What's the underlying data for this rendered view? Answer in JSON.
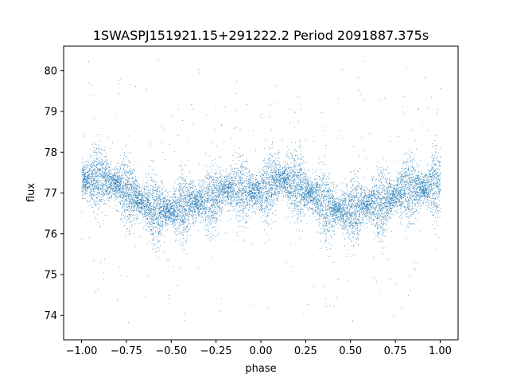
{
  "chart_data": {
    "type": "scatter",
    "title": "1SWASPJ151921.15+291222.2 Period 2091887.375s",
    "xlabel": "phase",
    "ylabel": "flux",
    "xlim": [
      -1.1,
      1.1
    ],
    "ylim": [
      73.4,
      80.6
    ],
    "xticks": [
      -1.0,
      -0.75,
      -0.5,
      -0.25,
      0.0,
      0.25,
      0.5,
      0.75,
      1.0
    ],
    "xtick_labels": [
      "−1.00",
      "−0.75",
      "−0.50",
      "−0.25",
      "0.00",
      "0.25",
      "0.50",
      "0.75",
      "1.00"
    ],
    "yticks": [
      74,
      75,
      76,
      77,
      78,
      79,
      80
    ],
    "ytick_labels": [
      "74",
      "75",
      "76",
      "77",
      "78",
      "79",
      "80"
    ],
    "grid": false,
    "point_color": "#1f77b4",
    "series": [
      {
        "profile_phase": [
          -1.0,
          -0.9,
          -0.8,
          -0.7,
          -0.6,
          -0.5,
          -0.4,
          -0.3,
          -0.2,
          -0.1,
          0.0,
          0.1,
          0.2,
          0.3,
          0.4,
          0.5,
          0.6,
          0.7,
          0.8,
          0.9,
          1.0
        ],
        "profile_flux": [
          77.3,
          77.4,
          77.2,
          76.9,
          76.6,
          76.55,
          76.75,
          76.8,
          77.1,
          77.1,
          77.0,
          77.4,
          77.2,
          76.9,
          76.6,
          76.55,
          76.75,
          76.8,
          77.1,
          77.1,
          77.3
        ],
        "typical_spread": 0.45
      }
    ]
  }
}
